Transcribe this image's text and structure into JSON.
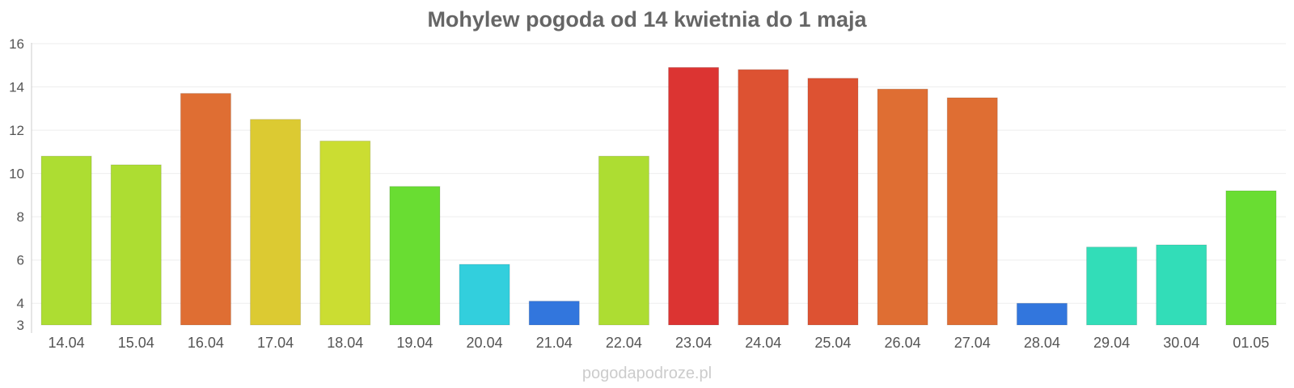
{
  "credit": "pogodapodroze.pl",
  "chart_data": {
    "type": "bar",
    "title": "Mohylew pogoda od 14 kwietnia do 1 maja",
    "xlabel": "",
    "ylabel": "",
    "ylim": [
      3,
      16
    ],
    "yticks": [
      3,
      4,
      6,
      8,
      10,
      12,
      14,
      16
    ],
    "grid": true,
    "categories": [
      "14.04",
      "15.04",
      "16.04",
      "17.04",
      "18.04",
      "19.04",
      "20.04",
      "21.04",
      "22.04",
      "23.04",
      "24.04",
      "25.04",
      "26.04",
      "27.04",
      "28.04",
      "29.04",
      "30.04",
      "01.05"
    ],
    "values": [
      10.8,
      10.4,
      13.7,
      12.5,
      11.5,
      9.4,
      5.8,
      4.1,
      10.8,
      14.9,
      14.8,
      14.4,
      13.9,
      13.5,
      4.0,
      6.6,
      6.7,
      9.2
    ],
    "colors": [
      "#addd32",
      "#addd32",
      "#df6e33",
      "#dcca32",
      "#cbdd32",
      "#69dd32",
      "#32cfdd",
      "#3276dd",
      "#addd32",
      "#dc3432",
      "#dd5232",
      "#dd5232",
      "#df6e33",
      "#df6e33",
      "#3276dd",
      "#32ddb8",
      "#32ddb8",
      "#69dd32"
    ]
  }
}
